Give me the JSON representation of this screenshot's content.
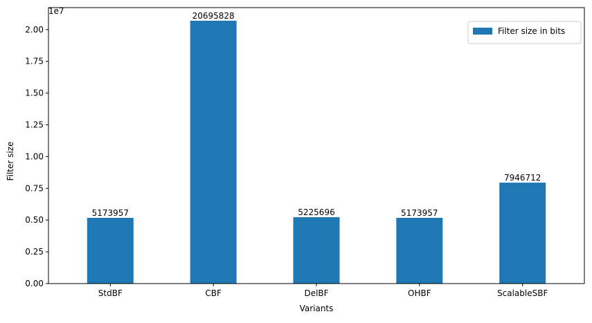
{
  "chart_data": {
    "type": "bar",
    "categories": [
      "StdBF",
      "CBF",
      "DelBF",
      "OHBF",
      "ScalableSBF"
    ],
    "values": [
      5173957,
      20695828,
      5225696,
      5173957,
      7946712
    ],
    "series": [
      {
        "name": "Filter size in bits",
        "values": [
          5173957,
          20695828,
          5225696,
          5173957,
          7946712
        ]
      }
    ],
    "data_labels": [
      "5173957",
      "20695828",
      "5225696",
      "5173957",
      "7946712"
    ],
    "title": "",
    "xlabel": "Variants",
    "ylabel": "Filter size",
    "y_offset_label": "1e7",
    "ylim": [
      0,
      21730000
    ],
    "y_ticks": [
      0,
      2500000,
      5000000,
      7500000,
      10000000,
      12500000,
      15000000,
      17500000,
      20000000
    ],
    "y_tick_labels": [
      "0.00",
      "0.25",
      "0.50",
      "0.75",
      "1.00",
      "1.25",
      "1.50",
      "1.75",
      "2.00"
    ],
    "grid": false,
    "legend_position": "top-right",
    "bar_color": "#1f77b4"
  }
}
